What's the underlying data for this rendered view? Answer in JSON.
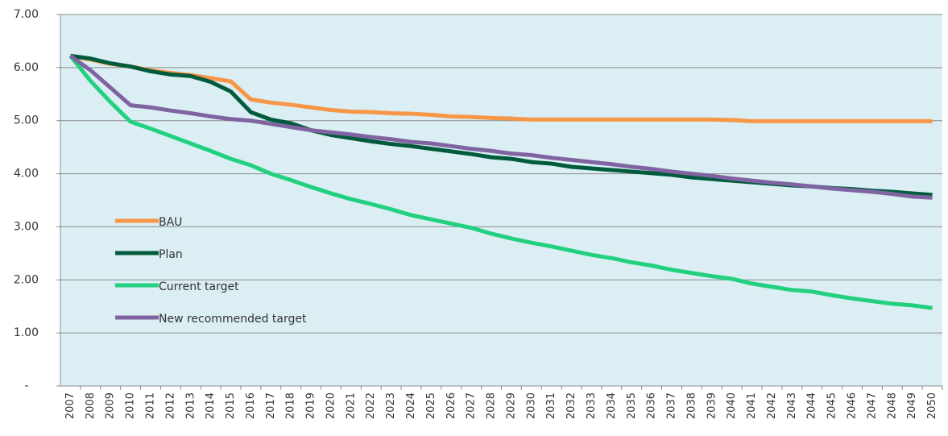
{
  "chart_data": {
    "type": "line",
    "categories": [
      "2007",
      "2008",
      "2009",
      "2010",
      "2011",
      "2012",
      "2013",
      "2014",
      "2015",
      "2016",
      "2017",
      "2018",
      "2019",
      "2020",
      "2021",
      "2022",
      "2023",
      "2024",
      "2025",
      "2026",
      "2027",
      "2028",
      "2029",
      "2030",
      "2031",
      "2032",
      "2033",
      "2034",
      "2035",
      "2036",
      "2037",
      "2038",
      "2039",
      "2040",
      "2041",
      "2042",
      "2043",
      "2044",
      "2045",
      "2046",
      "2047",
      "2048",
      "2049",
      "2050"
    ],
    "series": [
      {
        "name": "BAU",
        "color": "#f79646",
        "values": [
          6.22,
          6.15,
          6.07,
          6.02,
          5.95,
          5.9,
          5.86,
          5.8,
          5.74,
          5.4,
          5.34,
          5.3,
          5.25,
          5.2,
          5.17,
          5.16,
          5.14,
          5.13,
          5.11,
          5.08,
          5.07,
          5.05,
          5.04,
          5.02,
          5.02,
          5.02,
          5.02,
          5.02,
          5.02,
          5.02,
          5.02,
          5.02,
          5.02,
          5.01,
          4.99,
          4.99,
          4.99,
          4.99,
          4.99,
          4.99,
          4.99,
          4.99,
          4.99,
          4.99
        ]
      },
      {
        "name": "Plan",
        "color": "#005a3c",
        "values": [
          6.22,
          6.17,
          6.08,
          6.02,
          5.93,
          5.87,
          5.84,
          5.73,
          5.55,
          5.16,
          5.02,
          4.95,
          4.82,
          4.73,
          4.67,
          4.61,
          4.56,
          4.52,
          4.47,
          4.42,
          4.37,
          4.31,
          4.28,
          4.22,
          4.19,
          4.13,
          4.1,
          4.07,
          4.04,
          4.01,
          3.98,
          3.93,
          3.9,
          3.87,
          3.84,
          3.81,
          3.78,
          3.76,
          3.73,
          3.71,
          3.68,
          3.66,
          3.63,
          3.6
        ]
      },
      {
        "name": "Current target",
        "color": "#22d080",
        "values": [
          6.22,
          5.75,
          5.35,
          4.98,
          4.85,
          4.71,
          4.57,
          4.43,
          4.28,
          4.16,
          4.0,
          3.88,
          3.75,
          3.63,
          3.52,
          3.43,
          3.33,
          3.22,
          3.14,
          3.06,
          2.98,
          2.87,
          2.78,
          2.7,
          2.63,
          2.55,
          2.47,
          2.41,
          2.33,
          2.27,
          2.19,
          2.13,
          2.07,
          2.02,
          1.93,
          1.87,
          1.81,
          1.78,
          1.71,
          1.65,
          1.6,
          1.55,
          1.52,
          1.47
        ]
      },
      {
        "name": "New recommended target",
        "color": "#8064a2",
        "values": [
          6.22,
          5.95,
          5.62,
          5.29,
          5.25,
          5.19,
          5.14,
          5.08,
          5.03,
          5.0,
          4.94,
          4.88,
          4.82,
          4.78,
          4.74,
          4.69,
          4.65,
          4.6,
          4.57,
          4.52,
          4.47,
          4.43,
          4.38,
          4.35,
          4.3,
          4.26,
          4.22,
          4.18,
          4.13,
          4.09,
          4.04,
          4.0,
          3.96,
          3.91,
          3.87,
          3.83,
          3.8,
          3.76,
          3.72,
          3.69,
          3.66,
          3.62,
          3.57,
          3.55
        ]
      }
    ],
    "ylim": [
      0,
      7
    ],
    "yticks": [
      {
        "value": 0,
        "label": "-"
      },
      {
        "value": 1,
        "label": "1.00"
      },
      {
        "value": 2,
        "label": "2.00"
      },
      {
        "value": 3,
        "label": "3.00"
      },
      {
        "value": 4,
        "label": "4.00"
      },
      {
        "value": 5,
        "label": "5.00"
      },
      {
        "value": 6,
        "label": "6.00"
      },
      {
        "value": 7,
        "label": "7.00"
      }
    ],
    "grid": true,
    "legend": "left"
  }
}
